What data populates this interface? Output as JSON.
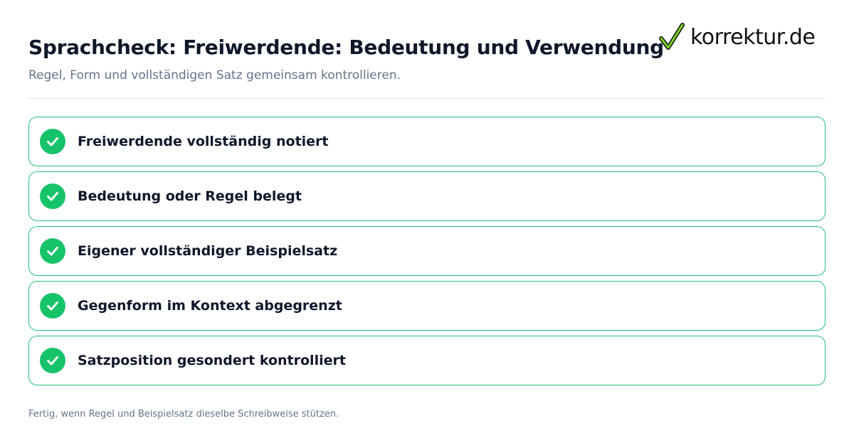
{
  "header": {
    "title": "Sprachcheck: Freiwerdende: Bedeutung und Verwendung",
    "subtitle": "Regel, Form und vollständigen Satz gemeinsam kontrollieren."
  },
  "logo": {
    "text": "korrektur.de",
    "icon": "checkmark-icon",
    "accent": "#7ed321"
  },
  "checklist": {
    "items": [
      {
        "label": "Freiwerdende vollständig notiert",
        "checked": true
      },
      {
        "label": "Bedeutung oder Regel belegt",
        "checked": true
      },
      {
        "label": "Eigener vollständiger Beispielsatz",
        "checked": true
      },
      {
        "label": "Gegenform im Kontext abgegrenzt",
        "checked": true
      },
      {
        "label": "Satzposition gesondert kontrolliert",
        "checked": true
      }
    ],
    "check_color": "#16c36a",
    "border_color": "#22c07a"
  },
  "footer": {
    "text": "Fertig, wenn Regel und Beispielsatz dieselbe Schreibweise stützen."
  }
}
